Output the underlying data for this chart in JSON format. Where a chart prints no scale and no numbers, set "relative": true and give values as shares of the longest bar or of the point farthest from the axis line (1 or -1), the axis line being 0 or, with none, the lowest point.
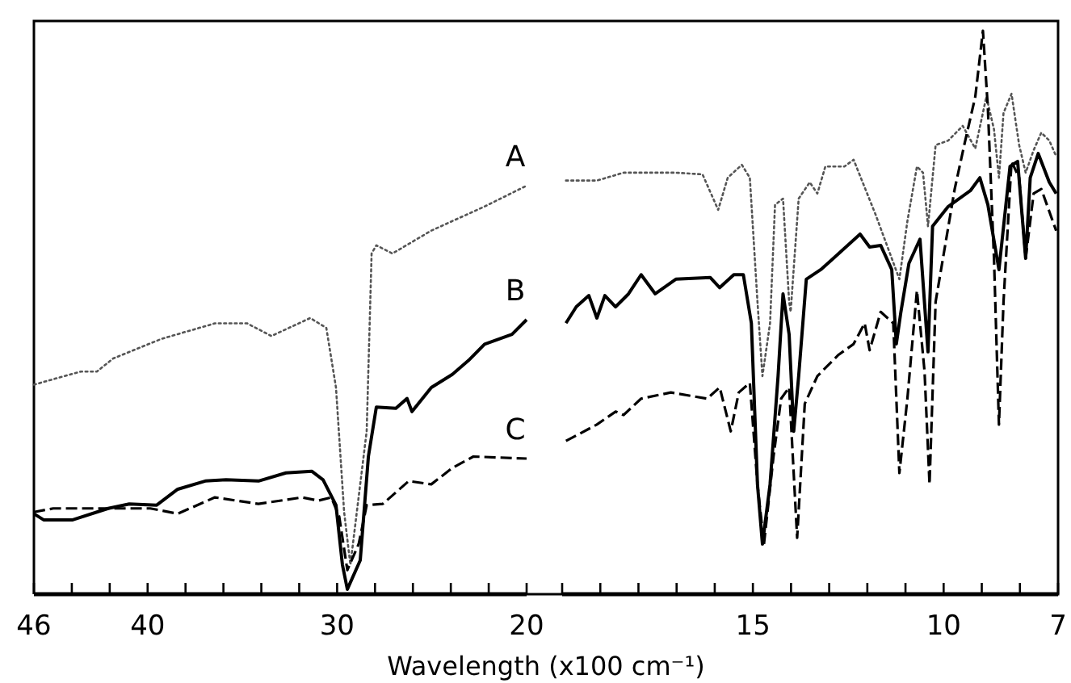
{
  "chart_data": [
    {
      "type": "line",
      "relative": true,
      "xlabel": "Wavelength (x100 cm⁻¹)",
      "xlim": [
        46,
        20
      ],
      "xticks": [
        46,
        {
          "value": 44,
          "label": null
        },
        {
          "value": 42,
          "label": null
        },
        40,
        {
          "value": 38,
          "label": null
        },
        {
          "value": 36,
          "label": null
        },
        {
          "value": 34,
          "label": null
        },
        {
          "value": 32,
          "label": null
        },
        30,
        {
          "value": 28,
          "label": null
        },
        {
          "value": 26,
          "label": null
        },
        {
          "value": 24,
          "label": null
        },
        {
          "value": 22,
          "label": null
        },
        20
      ],
      "series": [
        {
          "name": "A",
          "color": "#555555",
          "line_style": "dotted",
          "x": [
            46,
            43.53,
            42.68,
            41.82,
            39.27,
            36.45,
            34.75,
            33.47,
            31.42,
            30.57,
            30.06,
            29.63,
            29.3,
            28.44,
            28.18,
            27.93,
            27.08,
            25.03,
            22.22,
            20
          ],
          "values": [
            0.513,
            0.545,
            0.545,
            0.577,
            0.625,
            0.663,
            0.663,
            0.632,
            0.676,
            0.652,
            0.506,
            0.201,
            0.072,
            0.399,
            0.834,
            0.854,
            0.834,
            0.89,
            0.949,
            1
          ]
        },
        {
          "name": "B",
          "color": "#000000",
          "line_style": "solid",
          "x": [
            46,
            45.49,
            43.95,
            42.08,
            40.97,
            39.52,
            38.41,
            36.96,
            35.86,
            34.15,
            32.7,
            31.34,
            30.74,
            30.06,
            29.72,
            29.46,
            28.78,
            28.35,
            27.93,
            26.9,
            26.31,
            26.05,
            25.03,
            23.92,
            23.07,
            22.22,
            20.77,
            20
          ],
          "values": [
            0.197,
            0.182,
            0.182,
            0.21,
            0.221,
            0.218,
            0.257,
            0.277,
            0.28,
            0.277,
            0.297,
            0.301,
            0.28,
            0.218,
            0.072,
            0.012,
            0.083,
            0.337,
            0.458,
            0.455,
            0.479,
            0.447,
            0.506,
            0.538,
            0.572,
            0.612,
            0.636,
            0.672
          ]
        },
        {
          "name": "C",
          "color": "#000000",
          "line_style": "dashed",
          "x": [
            46,
            44.98,
            43.27,
            41.23,
            39.86,
            38.41,
            36.45,
            34.15,
            31.85,
            31,
            30.31,
            29.89,
            29.46,
            28.86,
            28.44,
            27.59,
            26.22,
            25.03,
            23.92,
            22.81,
            20
          ],
          "values": [
            0.201,
            0.21,
            0.21,
            0.21,
            0.21,
            0.197,
            0.237,
            0.221,
            0.237,
            0.229,
            0.237,
            0.19,
            0.059,
            0.123,
            0.218,
            0.221,
            0.277,
            0.269,
            0.309,
            0.337,
            0.332
          ]
        }
      ]
    },
    {
      "type": "line",
      "relative": true,
      "xlim": [
        20,
        7
      ],
      "xticks": [
        {
          "value": 20,
          "label": null
        },
        {
          "value": 19,
          "label": null
        },
        {
          "value": 18,
          "label": null
        },
        {
          "value": 17,
          "label": null
        },
        {
          "value": 16,
          "label": null
        },
        15,
        {
          "value": 14,
          "label": null
        },
        {
          "value": 13,
          "label": null
        },
        {
          "value": 12,
          "label": null
        },
        {
          "value": 11,
          "label": null
        },
        10,
        {
          "value": 9,
          "label": null
        },
        {
          "value": 8,
          "label": null
        },
        7
      ],
      "series": [
        {
          "color": "#555555",
          "line_style": "dotted",
          "x": [
            19.9,
            19.09,
            18.39,
            17.02,
            16.32,
            15.91,
            15.66,
            15.29,
            15.08,
            14.88,
            14.75,
            14.55,
            14.42,
            14.21,
            14.05,
            14.01,
            13.8,
            13.51,
            13.31,
            13.1,
            12.6,
            12.36,
            11.78,
            11.36,
            11.16,
            10.95,
            10.7,
            10.54,
            10.41,
            10.21,
            9.88,
            9.5,
            9.17,
            8.88,
            8.68,
            8.55,
            8.43,
            8.22,
            8.02,
            7.85,
            7.64,
            7.44,
            7.23,
            7.05
          ],
          "values": [
            0.734,
            0.734,
            0.748,
            0.748,
            0.745,
            0.682,
            0.739,
            0.762,
            0.739,
            0.519,
            0.387,
            0.481,
            0.691,
            0.702,
            0.519,
            0.501,
            0.702,
            0.731,
            0.711,
            0.759,
            0.759,
            0.771,
            0.673,
            0.596,
            0.559,
            0.662,
            0.759,
            0.748,
            0.653,
            0.797,
            0.805,
            0.831,
            0.791,
            0.883,
            0.825,
            0.739,
            0.854,
            0.888,
            0.797,
            0.748,
            0.788,
            0.819,
            0.805,
            0.777
          ]
        },
        {
          "color": "#000000",
          "line_style": "solid",
          "x": [
            19.9,
            19.63,
            19.3,
            19.09,
            18.88,
            18.6,
            18.26,
            17.93,
            17.56,
            17.02,
            16.12,
            15.87,
            15.5,
            15.25,
            15.04,
            14.88,
            14.75,
            14.55,
            14.34,
            14.21,
            14.05,
            13.93,
            13.8,
            13.6,
            13.22,
            12.89,
            12.19,
            11.94,
            11.65,
            11.36,
            11.24,
            11.12,
            10.91,
            10.62,
            10.41,
            10.29,
            9.88,
            9.3,
            9.05,
            8.84,
            8.55,
            8.26,
            8.06,
            7.85,
            7.73,
            7.52,
            7.23,
            7.05
          ],
          "values": [
            0.481,
            0.51,
            0.53,
            0.49,
            0.53,
            0.51,
            0.533,
            0.567,
            0.533,
            0.559,
            0.562,
            0.544,
            0.567,
            0.567,
            0.481,
            0.195,
            0.089,
            0.195,
            0.387,
            0.533,
            0.461,
            0.289,
            0.387,
            0.559,
            0.576,
            0.596,
            0.639,
            0.616,
            0.619,
            0.576,
            0.444,
            0.501,
            0.587,
            0.63,
            0.43,
            0.653,
            0.688,
            0.716,
            0.739,
            0.691,
            0.576,
            0.759,
            0.768,
            0.596,
            0.739,
            0.782,
            0.731,
            0.711
          ]
        },
        {
          "color": "#000000",
          "line_style": "dashed",
          "x": [
            19.9,
            19.09,
            18.6,
            18.39,
            17.93,
            17.15,
            16.2,
            15.87,
            15.58,
            15.37,
            15.08,
            14.88,
            14.71,
            14.46,
            14.26,
            14.05,
            13.84,
            13.64,
            13.31,
            12.77,
            12.36,
            12.07,
            11.94,
            11.65,
            11.32,
            11.16,
            10.95,
            10.7,
            10.5,
            10.37,
            10.21,
            9.71,
            9.46,
            9.17,
            8.97,
            8.84,
            8.68,
            8.55,
            8.43,
            8.22,
            8.02,
            7.85,
            7.64,
            7.44,
            7.05
          ],
          "values": [
            0.272,
            0.301,
            0.324,
            0.318,
            0.347,
            0.358,
            0.347,
            0.367,
            0.289,
            0.358,
            0.375,
            0.195,
            0.089,
            0.244,
            0.347,
            0.367,
            0.1,
            0.338,
            0.387,
            0.424,
            0.444,
            0.481,
            0.433,
            0.501,
            0.481,
            0.215,
            0.347,
            0.539,
            0.395,
            0.195,
            0.519,
            0.719,
            0.797,
            0.883,
            1,
            0.862,
            0.596,
            0.301,
            0.519,
            0.768,
            0.739,
            0.596,
            0.711,
            0.719,
            0.645
          ]
        }
      ]
    }
  ]
}
